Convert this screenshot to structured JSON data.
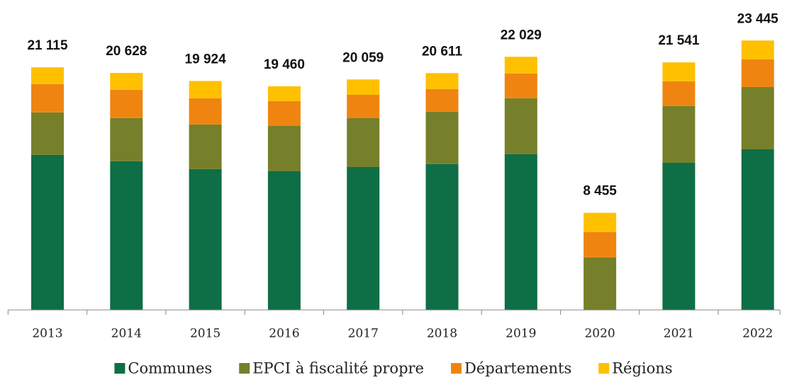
{
  "chart_data": {
    "type": "stacked-bar",
    "categories": [
      "2013",
      "2014",
      "2015",
      "2016",
      "2017",
      "2018",
      "2019",
      "2020",
      "2021",
      "2022"
    ],
    "series": [
      {
        "name": "Communes",
        "color": "#0e6e46",
        "values": [
          13490,
          12940,
          12260,
          12070,
          12440,
          12690,
          13550,
          0,
          12810,
          13980
        ]
      },
      {
        "name": "EPCI à fiscalité propre",
        "color": "#76802a",
        "values": [
          3700,
          3760,
          3880,
          3940,
          4250,
          4560,
          4870,
          4560,
          4930,
          5420
        ]
      },
      {
        "name": "Départements",
        "color": "#ef8510",
        "values": [
          2460,
          2460,
          2280,
          2160,
          2030,
          1970,
          2160,
          2220,
          2160,
          2400
        ]
      },
      {
        "name": "Régions",
        "color": "#ffc000",
        "values": [
          1465,
          1468,
          1504,
          1290,
          1339,
          1391,
          1449,
          1675,
          1641,
          1645
        ]
      }
    ],
    "totals": {
      "values": [
        21115,
        20628,
        19924,
        19460,
        20059,
        20611,
        22029,
        8455,
        21541,
        23445
      ],
      "value_labels": [
        "21 115",
        "20 628",
        "19 924",
        "19 460",
        "20 059",
        "20 611",
        "22 029",
        "8 455",
        "21 541",
        "23 445"
      ]
    },
    "ylim": [
      0,
      25000
    ]
  }
}
